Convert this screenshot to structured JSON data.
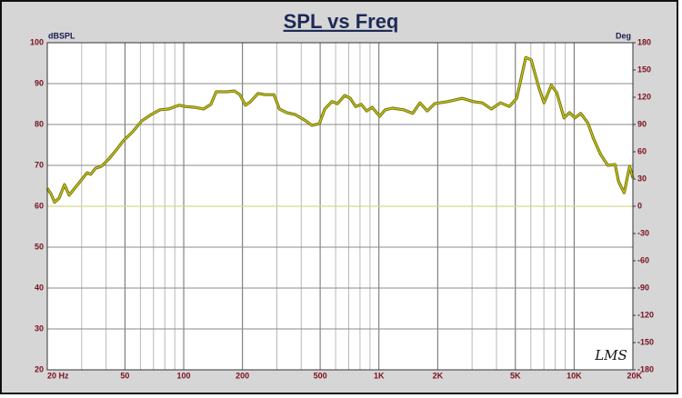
{
  "chart_data": {
    "type": "line",
    "title": "SPL vs Freq",
    "ylabel": "dBSPL",
    "y2label": "Deg",
    "annotation": "LMS",
    "xscale": "log",
    "xlim": [
      20,
      20000
    ],
    "ylim": [
      20,
      100
    ],
    "y2lim": [
      -180,
      180
    ],
    "xticks": [
      {
        "value": 20,
        "label": "20  Hz"
      },
      50,
      100,
      200,
      500,
      {
        "value": 1000,
        "label": "1K"
      },
      {
        "value": 2000,
        "label": "2K"
      },
      {
        "value": 5000,
        "label": "5K"
      },
      {
        "value": 10000,
        "label": "10K"
      },
      {
        "value": 20000,
        "label": "20K"
      }
    ],
    "xminor": [
      30,
      40,
      60,
      70,
      80,
      90,
      300,
      400,
      600,
      700,
      800,
      900,
      3000,
      4000,
      6000,
      7000,
      8000,
      9000
    ],
    "yticks": [
      20,
      30,
      40,
      50,
      60,
      70,
      80,
      90,
      100
    ],
    "y2ticks": [
      -180,
      -150,
      -120,
      -90,
      -60,
      -30,
      0,
      30,
      60,
      90,
      120,
      150,
      180
    ],
    "grid": true,
    "series": [
      {
        "color": "#77770c",
        "x": [
          20,
          20.9,
          21.8,
          23,
          24.5,
          25.9,
          27,
          29.4,
          32,
          33.4,
          35.3,
          38,
          41.4,
          45.2,
          49,
          54.7,
          61,
          68,
          75.6,
          84,
          94.8,
          102,
          113.7,
          126.6,
          137.8,
          146.8,
          167,
          181.5,
          194,
          207,
          220,
          240,
          261,
          290,
          309,
          337,
          374,
          416,
          454,
          495,
          528,
          575,
          613,
          668,
          713,
          760,
          812,
          866,
          924,
          1008,
          1077,
          1174,
          1336,
          1488,
          1622,
          1768,
          1930,
          2250,
          2670,
          3040,
          3380,
          3770,
          4190,
          4660,
          5080,
          5650,
          6030,
          6570,
          7010,
          7640,
          8140,
          8880,
          9470,
          10100,
          10800,
          11750,
          12530,
          13650,
          14870,
          16200,
          16900,
          18050,
          19250,
          20000
        ],
        "values": [
          64.4,
          63,
          61,
          62,
          65.3,
          62.7,
          63.8,
          66,
          68.2,
          67.8,
          69.3,
          69.8,
          71.6,
          73.8,
          76,
          78.2,
          80.9,
          82.4,
          83.6,
          83.8,
          84.7,
          84.4,
          84.2,
          83.8,
          84.9,
          88,
          88,
          88.2,
          87.3,
          84.7,
          85.6,
          87.6,
          87.3,
          87.3,
          83.8,
          82.9,
          82.4,
          81.1,
          79.8,
          80.2,
          83.8,
          85.6,
          85.1,
          87.1,
          86.4,
          84.4,
          84.9,
          83.3,
          84.2,
          82,
          83.6,
          84,
          83.6,
          82.7,
          85.3,
          83.3,
          85.1,
          85.6,
          86.4,
          85.6,
          85.3,
          83.8,
          85.3,
          84.4,
          86.4,
          96.4,
          95.8,
          89.3,
          85.3,
          89.6,
          87.8,
          81.6,
          82.9,
          81.6,
          82.7,
          80.4,
          76.7,
          72.7,
          70,
          70.2,
          66,
          63.3,
          69.8,
          66.9
        ]
      },
      {
        "color": "#d8d890",
        "axis": "y2",
        "x": [
          20,
          20000
        ],
        "values": [
          0,
          0
        ]
      }
    ]
  }
}
